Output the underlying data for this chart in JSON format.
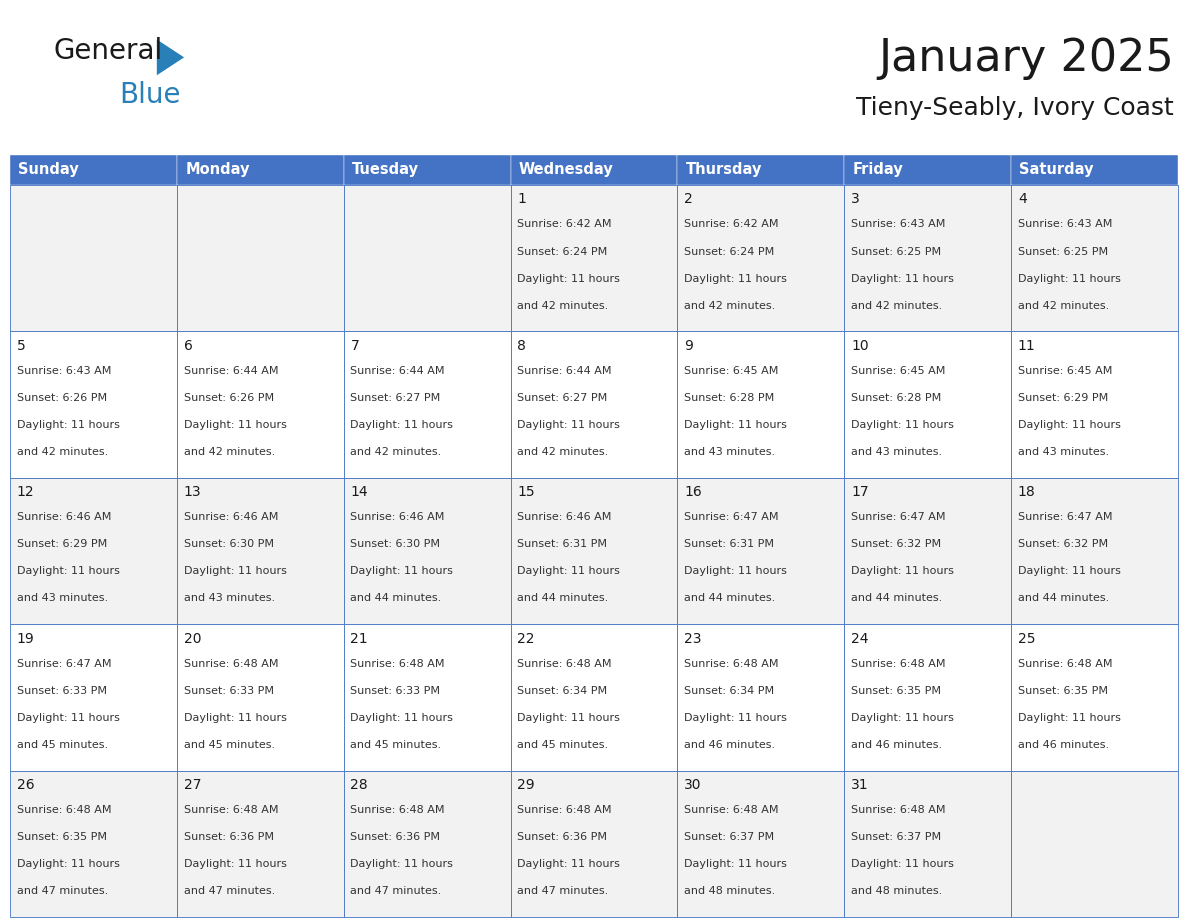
{
  "title": "January 2025",
  "subtitle": "Tieny-Seably, Ivory Coast",
  "days_of_week": [
    "Sunday",
    "Monday",
    "Tuesday",
    "Wednesday",
    "Thursday",
    "Friday",
    "Saturday"
  ],
  "header_bg": "#4472C4",
  "header_text": "#FFFFFF",
  "row_bg_odd": "#F2F2F2",
  "row_bg_even": "#FFFFFF",
  "cell_border_color": "#4472C4",
  "title_color": "#1a1a1a",
  "subtitle_color": "#1a1a1a",
  "day_number_color": "#1a1a1a",
  "cell_text_color": "#333333",
  "logo_text_color": "#1a1a1a",
  "logo_blue_color": "#2980B9",
  "calendar_data": [
    [
      {
        "day": null,
        "sunrise": null,
        "sunset": null,
        "daylight_line1": null,
        "daylight_line2": null
      },
      {
        "day": null,
        "sunrise": null,
        "sunset": null,
        "daylight_line1": null,
        "daylight_line2": null
      },
      {
        "day": null,
        "sunrise": null,
        "sunset": null,
        "daylight_line1": null,
        "daylight_line2": null
      },
      {
        "day": "1",
        "sunrise": "Sunrise: 6:42 AM",
        "sunset": "Sunset: 6:24 PM",
        "daylight_line1": "Daylight: 11 hours",
        "daylight_line2": "and 42 minutes."
      },
      {
        "day": "2",
        "sunrise": "Sunrise: 6:42 AM",
        "sunset": "Sunset: 6:24 PM",
        "daylight_line1": "Daylight: 11 hours",
        "daylight_line2": "and 42 minutes."
      },
      {
        "day": "3",
        "sunrise": "Sunrise: 6:43 AM",
        "sunset": "Sunset: 6:25 PM",
        "daylight_line1": "Daylight: 11 hours",
        "daylight_line2": "and 42 minutes."
      },
      {
        "day": "4",
        "sunrise": "Sunrise: 6:43 AM",
        "sunset": "Sunset: 6:25 PM",
        "daylight_line1": "Daylight: 11 hours",
        "daylight_line2": "and 42 minutes."
      }
    ],
    [
      {
        "day": "5",
        "sunrise": "Sunrise: 6:43 AM",
        "sunset": "Sunset: 6:26 PM",
        "daylight_line1": "Daylight: 11 hours",
        "daylight_line2": "and 42 minutes."
      },
      {
        "day": "6",
        "sunrise": "Sunrise: 6:44 AM",
        "sunset": "Sunset: 6:26 PM",
        "daylight_line1": "Daylight: 11 hours",
        "daylight_line2": "and 42 minutes."
      },
      {
        "day": "7",
        "sunrise": "Sunrise: 6:44 AM",
        "sunset": "Sunset: 6:27 PM",
        "daylight_line1": "Daylight: 11 hours",
        "daylight_line2": "and 42 minutes."
      },
      {
        "day": "8",
        "sunrise": "Sunrise: 6:44 AM",
        "sunset": "Sunset: 6:27 PM",
        "daylight_line1": "Daylight: 11 hours",
        "daylight_line2": "and 42 minutes."
      },
      {
        "day": "9",
        "sunrise": "Sunrise: 6:45 AM",
        "sunset": "Sunset: 6:28 PM",
        "daylight_line1": "Daylight: 11 hours",
        "daylight_line2": "and 43 minutes."
      },
      {
        "day": "10",
        "sunrise": "Sunrise: 6:45 AM",
        "sunset": "Sunset: 6:28 PM",
        "daylight_line1": "Daylight: 11 hours",
        "daylight_line2": "and 43 minutes."
      },
      {
        "day": "11",
        "sunrise": "Sunrise: 6:45 AM",
        "sunset": "Sunset: 6:29 PM",
        "daylight_line1": "Daylight: 11 hours",
        "daylight_line2": "and 43 minutes."
      }
    ],
    [
      {
        "day": "12",
        "sunrise": "Sunrise: 6:46 AM",
        "sunset": "Sunset: 6:29 PM",
        "daylight_line1": "Daylight: 11 hours",
        "daylight_line2": "and 43 minutes."
      },
      {
        "day": "13",
        "sunrise": "Sunrise: 6:46 AM",
        "sunset": "Sunset: 6:30 PM",
        "daylight_line1": "Daylight: 11 hours",
        "daylight_line2": "and 43 minutes."
      },
      {
        "day": "14",
        "sunrise": "Sunrise: 6:46 AM",
        "sunset": "Sunset: 6:30 PM",
        "daylight_line1": "Daylight: 11 hours",
        "daylight_line2": "and 44 minutes."
      },
      {
        "day": "15",
        "sunrise": "Sunrise: 6:46 AM",
        "sunset": "Sunset: 6:31 PM",
        "daylight_line1": "Daylight: 11 hours",
        "daylight_line2": "and 44 minutes."
      },
      {
        "day": "16",
        "sunrise": "Sunrise: 6:47 AM",
        "sunset": "Sunset: 6:31 PM",
        "daylight_line1": "Daylight: 11 hours",
        "daylight_line2": "and 44 minutes."
      },
      {
        "day": "17",
        "sunrise": "Sunrise: 6:47 AM",
        "sunset": "Sunset: 6:32 PM",
        "daylight_line1": "Daylight: 11 hours",
        "daylight_line2": "and 44 minutes."
      },
      {
        "day": "18",
        "sunrise": "Sunrise: 6:47 AM",
        "sunset": "Sunset: 6:32 PM",
        "daylight_line1": "Daylight: 11 hours",
        "daylight_line2": "and 44 minutes."
      }
    ],
    [
      {
        "day": "19",
        "sunrise": "Sunrise: 6:47 AM",
        "sunset": "Sunset: 6:33 PM",
        "daylight_line1": "Daylight: 11 hours",
        "daylight_line2": "and 45 minutes."
      },
      {
        "day": "20",
        "sunrise": "Sunrise: 6:48 AM",
        "sunset": "Sunset: 6:33 PM",
        "daylight_line1": "Daylight: 11 hours",
        "daylight_line2": "and 45 minutes."
      },
      {
        "day": "21",
        "sunrise": "Sunrise: 6:48 AM",
        "sunset": "Sunset: 6:33 PM",
        "daylight_line1": "Daylight: 11 hours",
        "daylight_line2": "and 45 minutes."
      },
      {
        "day": "22",
        "sunrise": "Sunrise: 6:48 AM",
        "sunset": "Sunset: 6:34 PM",
        "daylight_line1": "Daylight: 11 hours",
        "daylight_line2": "and 45 minutes."
      },
      {
        "day": "23",
        "sunrise": "Sunrise: 6:48 AM",
        "sunset": "Sunset: 6:34 PM",
        "daylight_line1": "Daylight: 11 hours",
        "daylight_line2": "and 46 minutes."
      },
      {
        "day": "24",
        "sunrise": "Sunrise: 6:48 AM",
        "sunset": "Sunset: 6:35 PM",
        "daylight_line1": "Daylight: 11 hours",
        "daylight_line2": "and 46 minutes."
      },
      {
        "day": "25",
        "sunrise": "Sunrise: 6:48 AM",
        "sunset": "Sunset: 6:35 PM",
        "daylight_line1": "Daylight: 11 hours",
        "daylight_line2": "and 46 minutes."
      }
    ],
    [
      {
        "day": "26",
        "sunrise": "Sunrise: 6:48 AM",
        "sunset": "Sunset: 6:35 PM",
        "daylight_line1": "Daylight: 11 hours",
        "daylight_line2": "and 47 minutes."
      },
      {
        "day": "27",
        "sunrise": "Sunrise: 6:48 AM",
        "sunset": "Sunset: 6:36 PM",
        "daylight_line1": "Daylight: 11 hours",
        "daylight_line2": "and 47 minutes."
      },
      {
        "day": "28",
        "sunrise": "Sunrise: 6:48 AM",
        "sunset": "Sunset: 6:36 PM",
        "daylight_line1": "Daylight: 11 hours",
        "daylight_line2": "and 47 minutes."
      },
      {
        "day": "29",
        "sunrise": "Sunrise: 6:48 AM",
        "sunset": "Sunset: 6:36 PM",
        "daylight_line1": "Daylight: 11 hours",
        "daylight_line2": "and 47 minutes."
      },
      {
        "day": "30",
        "sunrise": "Sunrise: 6:48 AM",
        "sunset": "Sunset: 6:37 PM",
        "daylight_line1": "Daylight: 11 hours",
        "daylight_line2": "and 48 minutes."
      },
      {
        "day": "31",
        "sunrise": "Sunrise: 6:48 AM",
        "sunset": "Sunset: 6:37 PM",
        "daylight_line1": "Daylight: 11 hours",
        "daylight_line2": "and 48 minutes."
      },
      {
        "day": null,
        "sunrise": null,
        "sunset": null,
        "daylight_line1": null,
        "daylight_line2": null
      }
    ]
  ]
}
